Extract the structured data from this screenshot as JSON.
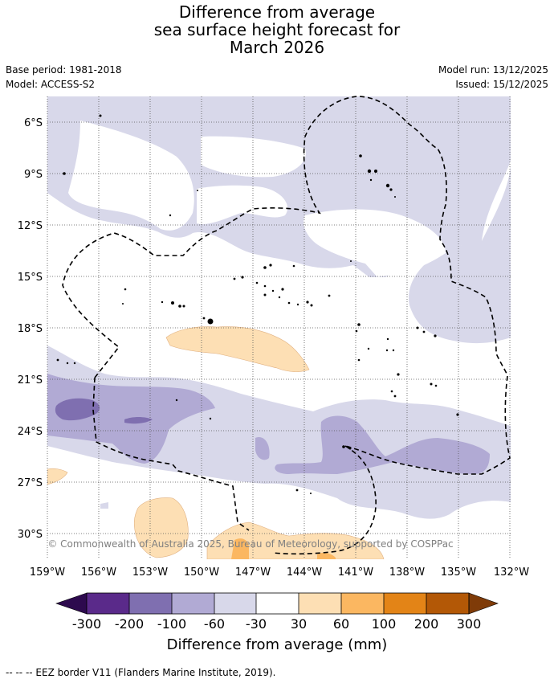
{
  "title": {
    "line1": "Difference from average",
    "line2": "sea surface height forecast for",
    "line3": "March 2026"
  },
  "meta": {
    "base_period": "Base period: 1981-2018",
    "model": "Model: ACCESS-S2",
    "model_run": "Model run: 13/12/2025",
    "issued": "Issued: 15/12/2025"
  },
  "map": {
    "lat_labels": [
      "6°S",
      "9°S",
      "12°S",
      "15°S",
      "18°S",
      "21°S",
      "24°S",
      "27°S",
      "30°S"
    ],
    "lon_labels": [
      "159°W",
      "156°W",
      "153°W",
      "150°W",
      "147°W",
      "144°W",
      "141°W",
      "138°W",
      "135°W",
      "132°W"
    ],
    "copyright": "© Commonwealth of Australia 2025, Bureau of Meteorology, supported by COSPPac"
  },
  "colorbar": {
    "boundaries": [
      "-300",
      "-200",
      "-100",
      "-60",
      "-30",
      "30",
      "60",
      "100",
      "200",
      "300"
    ],
    "title": "Difference from average (mm)",
    "colors": {
      "below_min": "#2d0a4e",
      "c1": "#5a2a8a",
      "c2": "#7f6fb0",
      "c3": "#b1aad4",
      "c4": "#d8d8ea",
      "c5": "#ffffff",
      "c6": "#fddfb4",
      "c7": "#fbb761",
      "c8": "#e38417",
      "c9": "#b35806",
      "above_max": "#7f3b08"
    }
  },
  "footnote": "--  --  -- EEZ border V11 (Flanders Marine Institute, 2019)."
}
